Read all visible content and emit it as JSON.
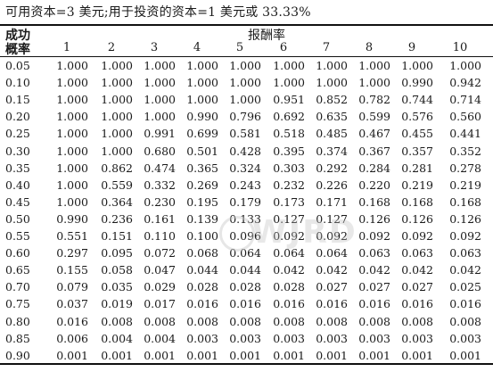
{
  "caption": "可用资本=3 美元;用于投资的资本=1 美元或 33.33%",
  "header": {
    "success_label": "成功",
    "probability_label": "概率",
    "payoff_label": "报酬率",
    "payoff_columns": [
      "1",
      "2",
      "3",
      "4",
      "5",
      "6",
      "7",
      "8",
      "9",
      "10"
    ]
  },
  "rows": [
    {
      "p": "0.05",
      "v": [
        "1.000",
        "1.000",
        "1.000",
        "1.000",
        "1.000",
        "1.000",
        "1.000",
        "1.000",
        "1.000",
        "1.000"
      ]
    },
    {
      "p": "0.10",
      "v": [
        "1.000",
        "1.000",
        "1.000",
        "1.000",
        "1.000",
        "1.000",
        "1.000",
        "1.000",
        "0.990",
        "0.942"
      ]
    },
    {
      "p": "0.15",
      "v": [
        "1.000",
        "1.000",
        "1.000",
        "1.000",
        "1.000",
        "0.951",
        "0.852",
        "0.782",
        "0.744",
        "0.714"
      ]
    },
    {
      "p": "0.20",
      "v": [
        "1.000",
        "1.000",
        "1.000",
        "0.990",
        "0.796",
        "0.692",
        "0.635",
        "0.599",
        "0.576",
        "0.560"
      ]
    },
    {
      "p": "0.25",
      "v": [
        "1.000",
        "1.000",
        "0.991",
        "0.699",
        "0.581",
        "0.518",
        "0.485",
        "0.467",
        "0.455",
        "0.441"
      ]
    },
    {
      "p": "0.30",
      "v": [
        "1.000",
        "1.000",
        "0.680",
        "0.501",
        "0.428",
        "0.395",
        "0.374",
        "0.367",
        "0.357",
        "0.352"
      ]
    },
    {
      "p": "0.35",
      "v": [
        "1.000",
        "0.862",
        "0.474",
        "0.365",
        "0.324",
        "0.303",
        "0.292",
        "0.284",
        "0.281",
        "0.278"
      ]
    },
    {
      "p": "0.40",
      "v": [
        "1.000",
        "0.559",
        "0.332",
        "0.269",
        "0.243",
        "0.232",
        "0.226",
        "0.220",
        "0.219",
        "0.219"
      ]
    },
    {
      "p": "0.45",
      "v": [
        "1.000",
        "0.364",
        "0.230",
        "0.195",
        "0.179",
        "0.173",
        "0.171",
        "0.168",
        "0.168",
        "0.168"
      ]
    },
    {
      "p": "0.50",
      "v": [
        "0.990",
        "0.236",
        "0.161",
        "0.139",
        "0.133",
        "0.127",
        "0.127",
        "0.126",
        "0.126",
        "0.126"
      ]
    },
    {
      "p": "0.55",
      "v": [
        "0.551",
        "0.151",
        "0.110",
        "0.100",
        "0.096",
        "0.092",
        "0.092",
        "0.092",
        "0.092",
        "0.092"
      ]
    },
    {
      "p": "0.60",
      "v": [
        "0.297",
        "0.095",
        "0.072",
        "0.068",
        "0.064",
        "0.064",
        "0.064",
        "0.063",
        "0.063",
        "0.063"
      ]
    },
    {
      "p": "0.65",
      "v": [
        "0.155",
        "0.058",
        "0.047",
        "0.044",
        "0.044",
        "0.042",
        "0.042",
        "0.042",
        "0.042",
        "0.042"
      ]
    },
    {
      "p": "0.70",
      "v": [
        "0.079",
        "0.035",
        "0.029",
        "0.028",
        "0.028",
        "0.028",
        "0.027",
        "0.027",
        "0.027",
        "0.025"
      ]
    },
    {
      "p": "0.75",
      "v": [
        "0.037",
        "0.019",
        "0.017",
        "0.016",
        "0.016",
        "0.016",
        "0.016",
        "0.016",
        "0.016",
        "0.016"
      ]
    },
    {
      "p": "0.80",
      "v": [
        "0.016",
        "0.008",
        "0.008",
        "0.008",
        "0.008",
        "0.008",
        "0.008",
        "0.008",
        "0.008",
        "0.008"
      ]
    },
    {
      "p": "0.85",
      "v": [
        "0.006",
        "0.004",
        "0.004",
        "0.003",
        "0.003",
        "0.003",
        "0.003",
        "0.003",
        "0.003",
        "0.003"
      ]
    },
    {
      "p": "0.90",
      "v": [
        "0.001",
        "0.001",
        "0.001",
        "0.001",
        "0.001",
        "0.001",
        "0.001",
        "0.001",
        "0.001",
        "0.001"
      ]
    }
  ]
}
